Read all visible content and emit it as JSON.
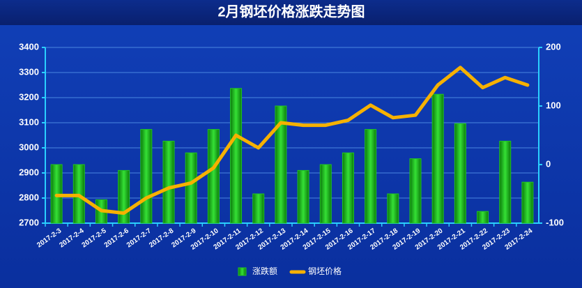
{
  "chart_data": {
    "type": "bar-line",
    "title": "2月钢坯价格涨跌走势图",
    "categories": [
      "2017-2-3",
      "2017-2-4",
      "2017-2-5",
      "2017-2-6",
      "2017-2-7",
      "2017-2-8",
      "2017-2-9",
      "2017-2-10",
      "2017-2-11",
      "2017-2-12",
      "2017-2-13",
      "2017-2-14",
      "2017-2-15",
      "2017-2-16",
      "2017-2-17",
      "2017-2-18",
      "2017-2-19",
      "2017-2-20",
      "2017-2-21",
      "2017-2-22",
      "2017-2-23",
      "2017-2-24"
    ],
    "series": [
      {
        "name": "涨跌额",
        "type": "bar",
        "axis": "y2",
        "color": "#22c422",
        "values": [
          0,
          0,
          -60,
          -10,
          60,
          40,
          20,
          60,
          130,
          -50,
          100,
          -10,
          0,
          20,
          60,
          -50,
          10,
          120,
          70,
          -80,
          40,
          -30
        ]
      },
      {
        "name": "钢坯价格",
        "type": "line",
        "axis": "y",
        "color": "#f6b100",
        "values": [
          2810,
          2810,
          2750,
          2740,
          2800,
          2840,
          2860,
          2920,
          3050,
          3000,
          3100,
          3090,
          3090,
          3110,
          3170,
          3120,
          3130,
          3250,
          3320,
          3240,
          3280,
          3250
        ]
      }
    ],
    "ylim": [
      2700,
      3400
    ],
    "yticks": [
      2700,
      2800,
      2900,
      3000,
      3100,
      3200,
      3300,
      3400
    ],
    "y2lim": [
      -100,
      200
    ],
    "y2ticks": [
      -100,
      0,
      100,
      200
    ],
    "grid": true
  }
}
